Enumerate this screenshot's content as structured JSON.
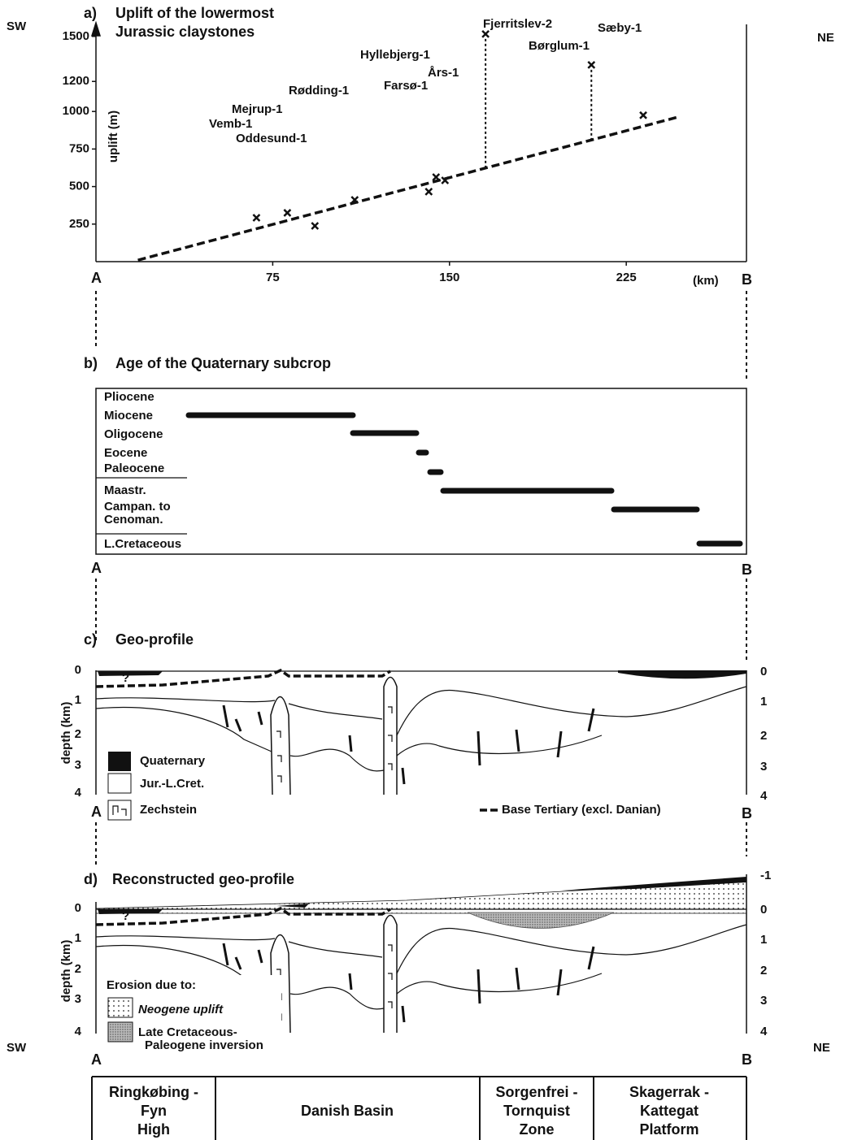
{
  "labels": {
    "sw": "SW",
    "ne": "NE",
    "a": "A",
    "b": "B"
  },
  "chart_data": {
    "type": "scatter",
    "panel": "a)",
    "title": [
      "Uplift of the lowermost",
      "Jurassic claystones"
    ],
    "y_label": "uplift (m)",
    "x_label": "(km)",
    "x": [
      68.1,
      81.2,
      92.9,
      109.8,
      141.2,
      144.3,
      148.1,
      165.3,
      210.2,
      232.2
    ],
    "values": [
      292,
      325,
      238,
      411,
      466,
      563,
      541,
      1516,
      1310,
      975
    ],
    "annotations": [
      "Fjerritslev-2",
      "Sæby-1",
      "Børglum-1",
      "Hyllebjerg-1",
      "Års-1",
      "Farsø-1",
      "Rødding-1",
      "Mejrup-1",
      "Vemb-1",
      "Oddesund-1"
    ],
    "trend": {
      "x": [
        17.8,
        247.2
      ],
      "values": [
        10,
        964
      ]
    },
    "xlim": [
      0,
      276
    ],
    "ylim": [
      0,
      1580
    ],
    "xticks": [
      75,
      150,
      225
    ],
    "yticks": [
      250,
      500,
      750,
      1000,
      1200,
      1500
    ],
    "color": "#111111",
    "grid": false
  },
  "panel_b": {
    "label": "b)",
    "title": "Age of the Quaternary subcrop",
    "stages": [
      "Pliocene",
      "Miocene",
      "Oligocene",
      "Eocene",
      "Paleocene",
      "Maastr.",
      "Campan. to",
      "Cenoman.",
      "L.Cretaceous"
    ]
  },
  "panel_c": {
    "label": "c)",
    "title": "Geo-profile",
    "y_label": "depth (km)",
    "depths": [
      "0",
      "1",
      "2",
      "3",
      "4"
    ],
    "query": "?",
    "legend": [
      "Quaternary",
      "Jur.-L.Cret.",
      "Zechstein"
    ],
    "line_legend": "Base Tertiary (excl. Danian)"
  },
  "panel_d": {
    "label": "d)",
    "title": "Reconstructed geo-profile",
    "y_label": "depth (km)",
    "depths": [
      "0",
      "1",
      "2",
      "3",
      "4"
    ],
    "top_depth": "-1",
    "legend_title": "Erosion due to:",
    "legend": [
      "Neogene uplift",
      [
        "Late Cretaceous-",
        "Paleogene inversion"
      ]
    ]
  },
  "zones": [
    [
      "Ringkøbing -",
      "Fyn",
      "High"
    ],
    [
      "Danish Basin"
    ],
    [
      "Sorgenfrei -",
      "Tornquist",
      "Zone"
    ],
    [
      "Skagerrak -",
      "Kattegat",
      "Platform"
    ]
  ]
}
